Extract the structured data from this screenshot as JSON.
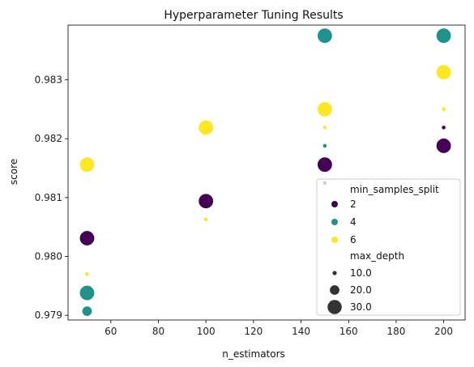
{
  "chart_data": {
    "type": "scatter",
    "title": "Hyperparameter Tuning Results",
    "xlabel": "n_estimators",
    "ylabel": "score",
    "xlim": [
      42,
      209
    ],
    "ylim": [
      0.97892,
      0.98393
    ],
    "xticks": [
      60,
      80,
      100,
      120,
      140,
      160,
      180,
      200
    ],
    "yticks": [
      0.979,
      0.98,
      0.981,
      0.982,
      0.983
    ],
    "grid": false,
    "hue": {
      "name": "min_samples_split",
      "levels": [
        {
          "label": "2",
          "color": "#440154"
        },
        {
          "label": "4",
          "color": "#21918c"
        },
        {
          "label": "6",
          "color": "#fde725"
        }
      ]
    },
    "size": {
      "name": "max_depth",
      "levels": [
        {
          "label": "10.0",
          "value": 10
        },
        {
          "label": "20.0",
          "value": 20
        },
        {
          "label": "30.0",
          "value": 30
        }
      ]
    },
    "legend_position": "lower-right",
    "points": [
      {
        "x": 50,
        "y": 0.97907,
        "hue": "4",
        "size": 20
      },
      {
        "x": 50,
        "y": 0.97938,
        "hue": "4",
        "size": 30
      },
      {
        "x": 50,
        "y": 0.9797,
        "hue": "6",
        "size": 10
      },
      {
        "x": 50,
        "y": 0.98031,
        "hue": "2",
        "size": 30
      },
      {
        "x": 50,
        "y": 0.98156,
        "hue": "6",
        "size": 30
      },
      {
        "x": 100,
        "y": 0.98063,
        "hue": "6",
        "size": 10
      },
      {
        "x": 100,
        "y": 0.98094,
        "hue": "2",
        "size": 30
      },
      {
        "x": 100,
        "y": 0.98219,
        "hue": "6",
        "size": 30
      },
      {
        "x": 150,
        "y": 0.98125,
        "hue": "2",
        "size": 10
      },
      {
        "x": 150,
        "y": 0.98156,
        "hue": "2",
        "size": 30
      },
      {
        "x": 150,
        "y": 0.98188,
        "hue": "4",
        "size": 10
      },
      {
        "x": 150,
        "y": 0.98219,
        "hue": "6",
        "size": 10
      },
      {
        "x": 150,
        "y": 0.9825,
        "hue": "6",
        "size": 30
      },
      {
        "x": 150,
        "y": 0.98375,
        "hue": "4",
        "size": 30
      },
      {
        "x": 200,
        "y": 0.98188,
        "hue": "2",
        "size": 30
      },
      {
        "x": 200,
        "y": 0.98219,
        "hue": "2",
        "size": 10
      },
      {
        "x": 200,
        "y": 0.9825,
        "hue": "6",
        "size": 10
      },
      {
        "x": 200,
        "y": 0.98313,
        "hue": "6",
        "size": 30
      },
      {
        "x": 200,
        "y": 0.98375,
        "hue": "4",
        "size": 30
      }
    ]
  }
}
